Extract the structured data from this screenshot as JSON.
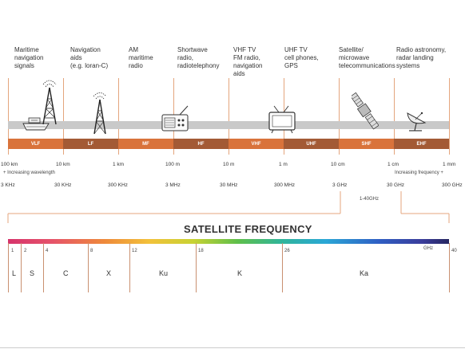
{
  "applications": [
    {
      "id": "maritime",
      "text": "Maritime\nnavigation\nsignals"
    },
    {
      "id": "navaids",
      "text": "Navigation\naids\n(e.g. loran-C)"
    },
    {
      "id": "am",
      "text": "AM\nmaritime\nradio"
    },
    {
      "id": "shortwave",
      "text": "Shortwave\nradio,\nradiotelephony"
    },
    {
      "id": "vhf",
      "text": "VHF TV\nFM radio,\nnavigation\naids"
    },
    {
      "id": "uhf",
      "text": "UHF TV\ncell phones,\nGPS"
    },
    {
      "id": "satellite",
      "text": "Satellite/\nmicrowave\ntelecommunications"
    },
    {
      "id": "radioastro",
      "text": "Radio astronomy,\nradar landing\nsystems"
    }
  ],
  "bands": [
    {
      "label": "VLF",
      "color": "#d9733b"
    },
    {
      "label": "LF",
      "color": "#a35a35"
    },
    {
      "label": "MF",
      "color": "#d9733b"
    },
    {
      "label": "HF",
      "color": "#a35a35"
    },
    {
      "label": "VHF",
      "color": "#d9733b"
    },
    {
      "label": "UHF",
      "color": "#a35a35"
    },
    {
      "label": "SHF",
      "color": "#d9733b"
    },
    {
      "label": "EHF",
      "color": "#a35a35"
    }
  ],
  "wavelengths": [
    "100 km",
    "10 km",
    "1 km",
    "100 m",
    "10 m",
    "1 m",
    "10 cm",
    "1 cm",
    "1 mm"
  ],
  "frequencies": [
    "3 KHz",
    "30 KHz",
    "300 KHz",
    "3 MHz",
    "30 MHz",
    "300 MHz",
    "3 GHz",
    "30 GHz",
    "300 GHz"
  ],
  "notes": {
    "increasing_wavelength": "+ Increasing wavelength",
    "increasing_frequency": "Increasing frequency +",
    "range": "1-40GHz"
  },
  "satellite": {
    "title": "SATELLITE FREQUENCY",
    "unit": "GHz",
    "ticks": [
      "1",
      "2",
      "4",
      "8",
      "12",
      "18",
      "26",
      "40"
    ],
    "bands": [
      "L",
      "S",
      "C",
      "X",
      "Ku",
      "K",
      "Ka"
    ]
  },
  "icons": [
    "ship-icon",
    "radio-tower-icon",
    "navigation-tower-icon",
    "radio-receiver-icon",
    "television-icon",
    "satellite-icon",
    "radar-dish-icon"
  ]
}
